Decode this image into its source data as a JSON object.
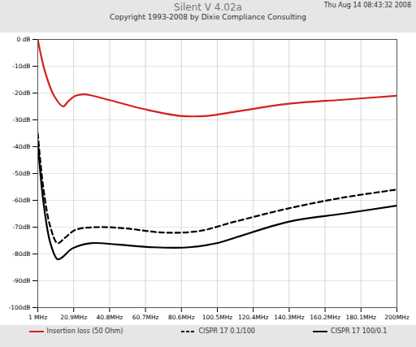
{
  "chart_data": {
    "type": "line",
    "title": "Silent V 4.02a",
    "subtitle": "Copyright 1993-2008 by Dixie Compliance Consulting",
    "annotations": [
      "Thu Aug 14 08:43:32 2008"
    ],
    "xlim": [
      1,
      200
    ],
    "xticks": [
      {
        "value": 1,
        "label": "1 MHz"
      },
      {
        "value": 20.9,
        "label": "20.9MHz"
      },
      {
        "value": 40.8,
        "label": "40.8MHz"
      },
      {
        "value": 60.7,
        "label": "60.7MHz"
      },
      {
        "value": 80.6,
        "label": "80.6MHz"
      },
      {
        "value": 100.5,
        "label": "100.5MHz"
      },
      {
        "value": 120.4,
        "label": "120.4MHz"
      },
      {
        "value": 140.3,
        "label": "140.3MHz"
      },
      {
        "value": 160.2,
        "label": "160.2MHz"
      },
      {
        "value": 180.1,
        "label": "180.1MHz"
      },
      {
        "value": 200,
        "label": "200MHz"
      }
    ],
    "ylim": [
      -100,
      0
    ],
    "yticks": [
      {
        "value": 0,
        "label": "0 dB"
      },
      {
        "value": -10,
        "label": "-10dB"
      },
      {
        "value": -20,
        "label": "-20dB"
      },
      {
        "value": -30,
        "label": "-30dB"
      },
      {
        "value": -40,
        "label": "-40dB"
      },
      {
        "value": -50,
        "label": "-50dB"
      },
      {
        "value": -60,
        "label": "-60dB"
      },
      {
        "value": -70,
        "label": "-70dB"
      },
      {
        "value": -80,
        "label": "-80dB"
      },
      {
        "value": -90,
        "label": "-90dB"
      },
      {
        "value": -100,
        "label": "-100dB"
      }
    ],
    "grid": true,
    "legend": "bottom",
    "series": [
      {
        "name": "Insertion loss (50 Ohm)",
        "color": "#d42020",
        "line_style": "solid",
        "x": [
          1,
          5,
          10,
          15,
          18,
          22,
          27,
          40,
          60,
          80,
          95,
          110,
          140,
          170,
          200
        ],
        "values": [
          0,
          -12,
          -21,
          -25,
          -23,
          -21,
          -20.5,
          -22.5,
          -26,
          -28.5,
          -28.5,
          -27,
          -24,
          -22.5,
          -21
        ]
      },
      {
        "name": "CISPR 17 0.1/100",
        "color": "#000000",
        "line_style": "dashed",
        "x": [
          1,
          4,
          8,
          12,
          16,
          22,
          35,
          50,
          70,
          90,
          110,
          140,
          170,
          200
        ],
        "values": [
          -35,
          -55,
          -70,
          -76,
          -74,
          -71,
          -70,
          -70.5,
          -72,
          -71.5,
          -68,
          -63,
          -59,
          -56
        ]
      },
      {
        "name": "CISPR 17 100/0.1",
        "color": "#000000",
        "line_style": "solid",
        "x": [
          1,
          4,
          8,
          12,
          15,
          20,
          30,
          45,
          65,
          85,
          100,
          110,
          140,
          170,
          200
        ],
        "values": [
          -38,
          -60,
          -76,
          -82,
          -81,
          -78,
          -76,
          -76.5,
          -77.5,
          -77.5,
          -76,
          -74,
          -68,
          -65,
          -62
        ]
      }
    ]
  }
}
